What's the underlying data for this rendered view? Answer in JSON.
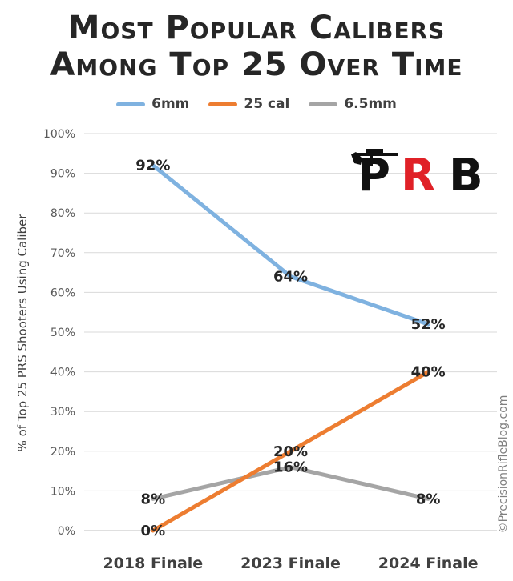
{
  "title_line1": "Most Popular Calibers",
  "title_line2": "Among Top 25 Over Time",
  "watermark": "©PrecisionRifleBlog.com",
  "logo": {
    "text_p": "P",
    "text_r": "R",
    "text_b": "B",
    "icon": "rifle-silhouette"
  },
  "colors": {
    "6mm": "#7fb2e0",
    "25 cal": "#ed7d31",
    "6.5mm": "#a5a5a5"
  },
  "chart_data": {
    "type": "line",
    "categories": [
      "2018 Finale",
      "2023 Finale",
      "2024 Finale"
    ],
    "series": [
      {
        "name": "6mm",
        "values": [
          92,
          64,
          52
        ],
        "labels": [
          "92%",
          "64%",
          "52%"
        ]
      },
      {
        "name": "25 cal",
        "values": [
          0,
          20,
          40
        ],
        "labels": [
          "0%",
          "20%",
          "40%"
        ]
      },
      {
        "name": "6.5mm",
        "values": [
          8,
          16,
          8
        ],
        "labels": [
          "8%",
          "16%",
          "8%"
        ]
      }
    ],
    "ylabel": "% of Top 25 PRS Shooters Using Caliber",
    "xlabel": "",
    "ylim": [
      0,
      100
    ],
    "yticks": [
      "0%",
      "10%",
      "20%",
      "30%",
      "40%",
      "50%",
      "60%",
      "70%",
      "80%",
      "90%",
      "100%"
    ],
    "grid": true,
    "legend": "top"
  }
}
